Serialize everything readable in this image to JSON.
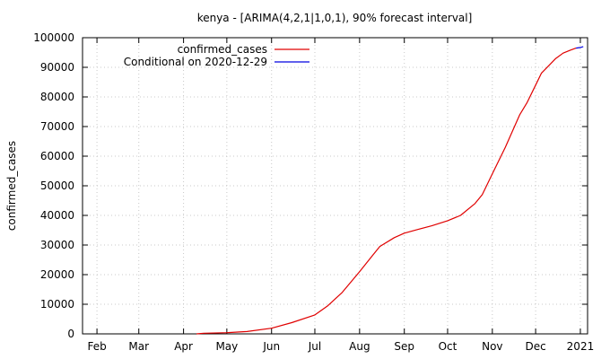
{
  "chart_data": {
    "type": "line",
    "title": "kenya -  [ARIMA(4,2,1|1,0,1), 90% forecast interval]",
    "xlabel": "",
    "ylabel": "confirmed_cases",
    "x_ticks": [
      {
        "label": "Feb",
        "date": "2020-02-01"
      },
      {
        "label": "Mar",
        "date": "2020-03-01"
      },
      {
        "label": "Apr",
        "date": "2020-04-01"
      },
      {
        "label": "May",
        "date": "2020-05-01"
      },
      {
        "label": "Jun",
        "date": "2020-06-01"
      },
      {
        "label": "Jul",
        "date": "2020-07-01"
      },
      {
        "label": "Aug",
        "date": "2020-08-01"
      },
      {
        "label": "Sep",
        "date": "2020-09-01"
      },
      {
        "label": "Oct",
        "date": "2020-10-01"
      },
      {
        "label": "Nov",
        "date": "2020-11-01"
      },
      {
        "label": "Dec",
        "date": "2020-12-01"
      },
      {
        "label": "2021",
        "date": "2021-01-01"
      }
    ],
    "xlim": [
      "2020-01-22",
      "2021-01-06"
    ],
    "ylim": [
      0,
      100000
    ],
    "y_ticks": [
      0,
      10000,
      20000,
      30000,
      40000,
      50000,
      60000,
      70000,
      80000,
      90000,
      100000
    ],
    "grid": true,
    "legend_position": "top-left",
    "series": [
      {
        "name": "confirmed_cases",
        "color": "#e00000",
        "points": [
          {
            "x": "2020-04-10",
            "y": 0
          },
          {
            "x": "2020-04-15",
            "y": 200
          },
          {
            "x": "2020-05-01",
            "y": 400
          },
          {
            "x": "2020-05-15",
            "y": 800
          },
          {
            "x": "2020-06-01",
            "y": 1900
          },
          {
            "x": "2020-06-15",
            "y": 3800
          },
          {
            "x": "2020-07-01",
            "y": 6400
          },
          {
            "x": "2020-07-10",
            "y": 9500
          },
          {
            "x": "2020-07-20",
            "y": 14000
          },
          {
            "x": "2020-08-01",
            "y": 21000
          },
          {
            "x": "2020-08-10",
            "y": 26500
          },
          {
            "x": "2020-08-15",
            "y": 29500
          },
          {
            "x": "2020-08-25",
            "y": 32500
          },
          {
            "x": "2020-09-01",
            "y": 34000
          },
          {
            "x": "2020-09-10",
            "y": 35200
          },
          {
            "x": "2020-09-20",
            "y": 36500
          },
          {
            "x": "2020-10-01",
            "y": 38200
          },
          {
            "x": "2020-10-10",
            "y": 40000
          },
          {
            "x": "2020-10-20",
            "y": 44000
          },
          {
            "x": "2020-10-25",
            "y": 47000
          },
          {
            "x": "2020-11-01",
            "y": 54000
          },
          {
            "x": "2020-11-10",
            "y": 63000
          },
          {
            "x": "2020-11-20",
            "y": 74000
          },
          {
            "x": "2020-11-25",
            "y": 78000
          },
          {
            "x": "2020-12-01",
            "y": 84000
          },
          {
            "x": "2020-12-05",
            "y": 88000
          },
          {
            "x": "2020-12-10",
            "y": 90500
          },
          {
            "x": "2020-12-15",
            "y": 93000
          },
          {
            "x": "2020-12-20",
            "y": 94800
          },
          {
            "x": "2020-12-25",
            "y": 95800
          },
          {
            "x": "2020-12-29",
            "y": 96500
          }
        ]
      },
      {
        "name": "Conditional on 2020-12-29",
        "color": "#0000e0",
        "points": [
          {
            "x": "2020-12-29",
            "y": 96500
          },
          {
            "x": "2021-01-01",
            "y": 96700
          },
          {
            "x": "2021-01-03",
            "y": 97000
          }
        ]
      }
    ]
  }
}
